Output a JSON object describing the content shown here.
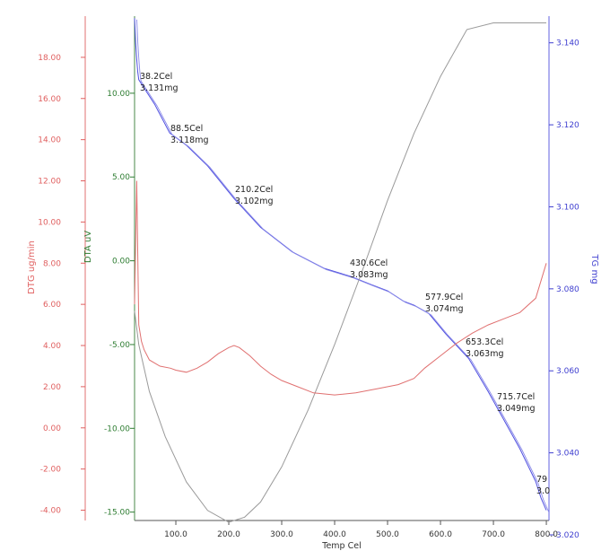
{
  "chart_data": {
    "type": "line",
    "xlabel": "Temp Cel",
    "xlim": [
      22,
      805
    ],
    "x_ticks": [
      "100.0",
      "200.0",
      "300.0",
      "400.0",
      "500.0",
      "600.0",
      "700.0",
      "800.0"
    ],
    "axes": {
      "dtg": {
        "label": "DTG ug/min",
        "range": [
          -4.5,
          20.0
        ],
        "ticks": [
          "18.00",
          "16.00",
          "14.00",
          "12.00",
          "10.00",
          "8.00",
          "6.00",
          "4.00",
          "2.00",
          "0.00",
          "-2.00",
          "-4.00"
        ],
        "color": "#e06060"
      },
      "dta": {
        "label": "DTA uV",
        "range": [
          -15.5,
          14.6
        ],
        "ticks": [
          "10.00",
          "5.00",
          "0.00",
          "-5.00",
          "-10.00",
          "-15.00"
        ],
        "color": "#2e7d32"
      },
      "tg": {
        "label": "TG mg",
        "range": [
          3.0235,
          3.1465
        ],
        "ticks": [
          "3.140",
          "3.120",
          "3.100",
          "3.080",
          "3.060",
          "3.040",
          "3.020"
        ],
        "color": "#4040d0"
      }
    },
    "series": [
      {
        "axis": "tg",
        "color": "#5050e0",
        "x": [
          22,
          24,
          26,
          28,
          30,
          40,
          60,
          88.5,
          120,
          160,
          210.2,
          260,
          320,
          380,
          430.6,
          470,
          500,
          530,
          550,
          577.9,
          610,
          653.3,
          690,
          715.7,
          750,
          780,
          790,
          800
        ],
        "y": [
          3.146,
          3.14,
          3.136,
          3.133,
          3.131,
          3.129,
          3.125,
          3.118,
          3.115,
          3.11,
          3.102,
          3.095,
          3.089,
          3.085,
          3.083,
          3.081,
          3.0795,
          3.077,
          3.076,
          3.074,
          3.069,
          3.063,
          3.055,
          3.049,
          3.041,
          3.033,
          3.029,
          3.026
        ]
      },
      {
        "axis": "dta",
        "color": "#9a9a9a",
        "x": [
          22,
          30,
          50,
          80,
          120,
          160,
          200,
          230,
          260,
          300,
          350,
          400,
          450,
          500,
          550,
          600,
          650,
          700,
          750,
          790,
          800
        ],
        "y": [
          -3.0,
          -5.0,
          -7.8,
          -10.5,
          -13.2,
          -14.9,
          -15.6,
          -15.3,
          -14.4,
          -12.3,
          -8.9,
          -5.0,
          -0.8,
          3.6,
          7.6,
          11.0,
          13.8,
          14.2,
          14.2,
          14.2,
          14.2
        ]
      },
      {
        "axis": "dtg",
        "color": "#e07070",
        "x": [
          22,
          26,
          30,
          35,
          40,
          50,
          70,
          90,
          100,
          120,
          140,
          160,
          180,
          200,
          210,
          220,
          240,
          260,
          280,
          300,
          330,
          360,
          400,
          440,
          480,
          520,
          550,
          570,
          600,
          630,
          660,
          690,
          720,
          750,
          780,
          800
        ],
        "y": [
          6.0,
          12.0,
          5.0,
          4.2,
          3.8,
          3.3,
          3.0,
          2.9,
          2.8,
          2.7,
          2.9,
          3.2,
          3.6,
          3.9,
          4.0,
          3.9,
          3.5,
          3.0,
          2.6,
          2.3,
          2.0,
          1.7,
          1.6,
          1.7,
          1.9,
          2.1,
          2.4,
          2.9,
          3.5,
          4.1,
          4.6,
          5.0,
          5.3,
          5.6,
          6.3,
          8.0
        ]
      }
    ],
    "annotations": [
      {
        "temp": "38.2Cel",
        "mass": "3.131mg"
      },
      {
        "temp": "88.5Cel",
        "mass": "3.118mg"
      },
      {
        "temp": "210.2Cel",
        "mass": "3.102mg"
      },
      {
        "temp": "430.6Cel",
        "mass": "3.083mg"
      },
      {
        "temp": "577.9Cel",
        "mass": "3.074mg"
      },
      {
        "temp": "653.3Cel",
        "mass": "3.063mg"
      },
      {
        "temp": "715.7Cel",
        "mass": "3.049mg"
      },
      {
        "temp": "79",
        "mass": "3.0"
      }
    ]
  }
}
